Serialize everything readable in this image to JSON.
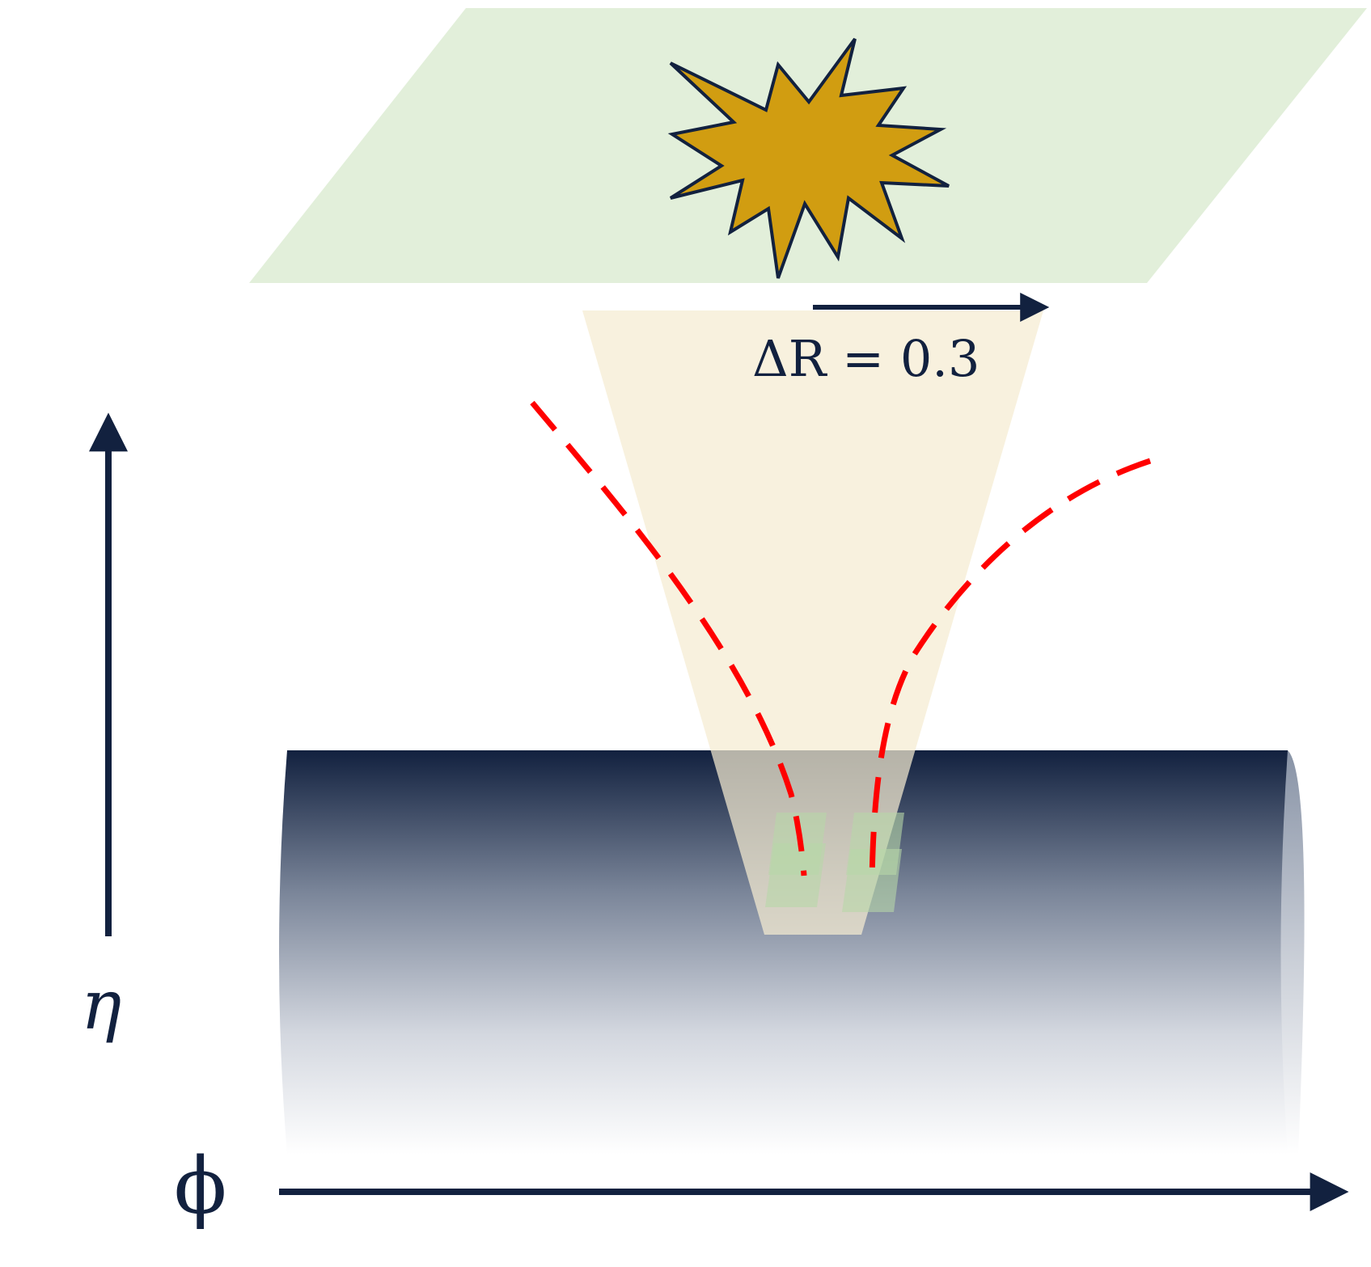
{
  "labels": {
    "delta_r": "ΔR = 0.3",
    "eta_axis": "η",
    "phi_axis": "ϕ"
  },
  "colors": {
    "navy": "#12213f",
    "plane_green": "#e2efda",
    "cone_tan": "#f5ecd1",
    "star_gold": "#d19d11",
    "track_red": "#ff0000",
    "hit_green": "#b7d7a8"
  },
  "icons": {
    "collision": "collision-star-icon"
  }
}
